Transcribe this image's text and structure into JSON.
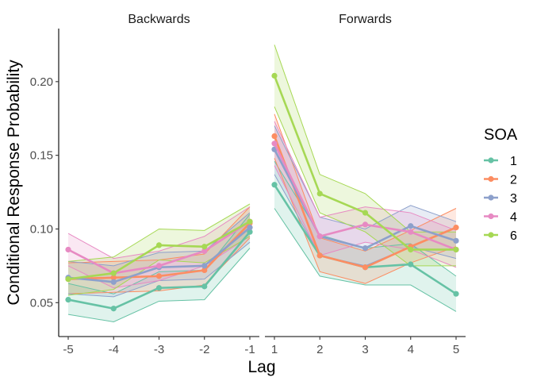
{
  "chart_data": {
    "type": "line",
    "xlabel": "Lag",
    "ylabel": "Conditional Response Probability",
    "ylim": [
      0.027,
      0.236
    ],
    "y_ticks": [
      0.05,
      0.1,
      0.15,
      0.2
    ],
    "y_tick_labels": [
      "0.05",
      "0.10",
      "0.15",
      "0.20"
    ],
    "legend": {
      "title": "SOA",
      "position": "right"
    },
    "grid": false,
    "facets": [
      {
        "title": "Backwards",
        "x": [
          -5,
          -4,
          -3,
          -2,
          -1
        ],
        "x_tick_labels": [
          "-5",
          "-4",
          "-3",
          "-2",
          "-1"
        ],
        "series": [
          {
            "name": "1",
            "color": "#66c2a5",
            "values": [
              0.052,
              0.046,
              0.06,
              0.061,
              0.098
            ],
            "lower": [
              0.042,
              0.037,
              0.051,
              0.052,
              0.087
            ],
            "upper": [
              0.063,
              0.056,
              0.071,
              0.072,
              0.11
            ]
          },
          {
            "name": "2",
            "color": "#fc8d62",
            "values": [
              0.066,
              0.067,
              0.068,
              0.072,
              0.104
            ],
            "lower": [
              0.056,
              0.057,
              0.058,
              0.062,
              0.094
            ],
            "upper": [
              0.077,
              0.078,
              0.079,
              0.083,
              0.115
            ]
          },
          {
            "name": "3",
            "color": "#8da0cb",
            "values": [
              0.067,
              0.064,
              0.074,
              0.075,
              0.101
            ],
            "lower": [
              0.056,
              0.054,
              0.065,
              0.066,
              0.091
            ],
            "upper": [
              0.078,
              0.075,
              0.084,
              0.085,
              0.111
            ]
          },
          {
            "name": "4",
            "color": "#e78ac3",
            "values": [
              0.086,
              0.07,
              0.075,
              0.085,
              0.105
            ],
            "lower": [
              0.075,
              0.06,
              0.065,
              0.075,
              0.095
            ],
            "upper": [
              0.097,
              0.08,
              0.085,
              0.095,
              0.115
            ]
          },
          {
            "name": "6",
            "color": "#a6d854",
            "values": [
              0.066,
              0.07,
              0.089,
              0.088,
              0.105
            ],
            "lower": [
              0.055,
              0.059,
              0.079,
              0.077,
              0.095
            ],
            "upper": [
              0.078,
              0.081,
              0.1,
              0.099,
              0.117
            ]
          }
        ]
      },
      {
        "title": "Forwards",
        "x": [
          1,
          2,
          3,
          4,
          5
        ],
        "x_tick_labels": [
          "1",
          "2",
          "3",
          "4",
          "5"
        ],
        "series": [
          {
            "name": "1",
            "color": "#66c2a5",
            "values": [
              0.13,
              0.082,
              0.074,
              0.076,
              0.056
            ],
            "lower": [
              0.114,
              0.068,
              0.062,
              0.062,
              0.044
            ],
            "upper": [
              0.146,
              0.096,
              0.087,
              0.09,
              0.068
            ]
          },
          {
            "name": "2",
            "color": "#fc8d62",
            "values": [
              0.163,
              0.082,
              0.074,
              0.088,
              0.101
            ],
            "lower": [
              0.148,
              0.071,
              0.063,
              0.077,
              0.088
            ],
            "upper": [
              0.178,
              0.094,
              0.085,
              0.099,
              0.114
            ]
          },
          {
            "name": "3",
            "color": "#8da0cb",
            "values": [
              0.154,
              0.095,
              0.087,
              0.102,
              0.092
            ],
            "lower": [
              0.137,
              0.082,
              0.075,
              0.088,
              0.08
            ],
            "upper": [
              0.17,
              0.108,
              0.1,
              0.116,
              0.105
            ]
          },
          {
            "name": "4",
            "color": "#e78ac3",
            "values": [
              0.158,
              0.095,
              0.103,
              0.098,
              0.086
            ],
            "lower": [
              0.143,
              0.082,
              0.091,
              0.086,
              0.074
            ],
            "upper": [
              0.173,
              0.108,
              0.115,
              0.111,
              0.099
            ]
          },
          {
            "name": "6",
            "color": "#a6d854",
            "values": [
              0.204,
              0.124,
              0.111,
              0.086,
              0.086
            ],
            "lower": [
              0.183,
              0.111,
              0.098,
              0.075,
              0.075
            ],
            "upper": [
              0.225,
              0.137,
              0.124,
              0.098,
              0.098
            ]
          }
        ]
      }
    ]
  }
}
